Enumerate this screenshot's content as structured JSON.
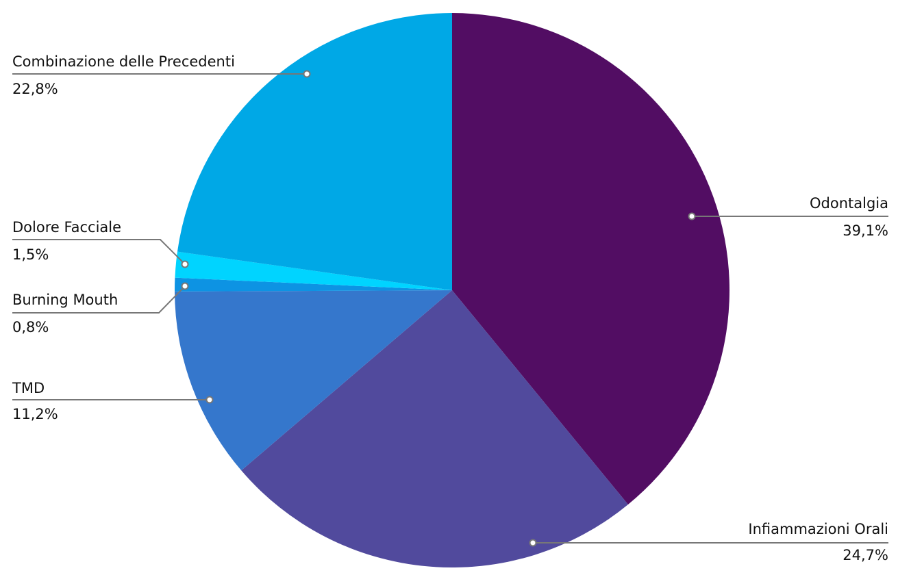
{
  "chart_data": {
    "type": "pie",
    "categories": [
      "Odontalgia",
      "Infiammazioni Orali",
      "TMD",
      "Burning Mouth",
      "Dolore Facciale",
      "Combinazione delle Precedenti"
    ],
    "values": [
      39.1,
      24.7,
      11.2,
      0.8,
      1.5,
      22.8
    ],
    "value_labels": [
      "39,1%",
      "24,7%",
      "11,2%",
      "0,8%",
      "1,5%",
      "22,8%"
    ],
    "colors": [
      "#520d63",
      "#514a9d",
      "#3577cc",
      "#0d93e3",
      "#00d4ff",
      "#00a8e6"
    ]
  }
}
